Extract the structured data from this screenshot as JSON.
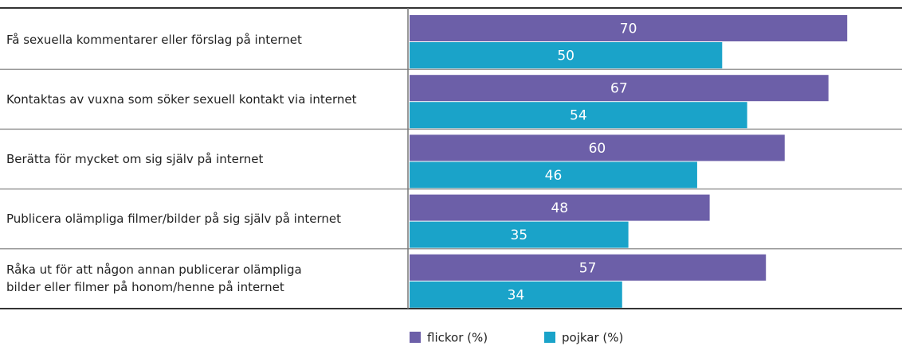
{
  "chart_data": {
    "type": "hbar",
    "categories": [
      "Få sexuella kommentarer eller förslag på internet",
      "Kontaktas av vuxna som söker sexuell kontakt via internet",
      "Berätta för mycket om sig själv på internet",
      "Publicera olämpliga filmer/bilder på sig själv på internet",
      "Råka ut för att någon annan publicerar olämpliga\nbilder eller filmer på honom/henne på internet"
    ],
    "series": [
      {
        "name": "flickor (%)",
        "color": "#6c5fa8",
        "values": [
          70,
          67,
          60,
          48,
          57
        ]
      },
      {
        "name": "pojkar (%)",
        "color": "#1aa3c9",
        "values": [
          50,
          54,
          46,
          35,
          34
        ]
      }
    ],
    "xlim": [
      0,
      78
    ]
  }
}
